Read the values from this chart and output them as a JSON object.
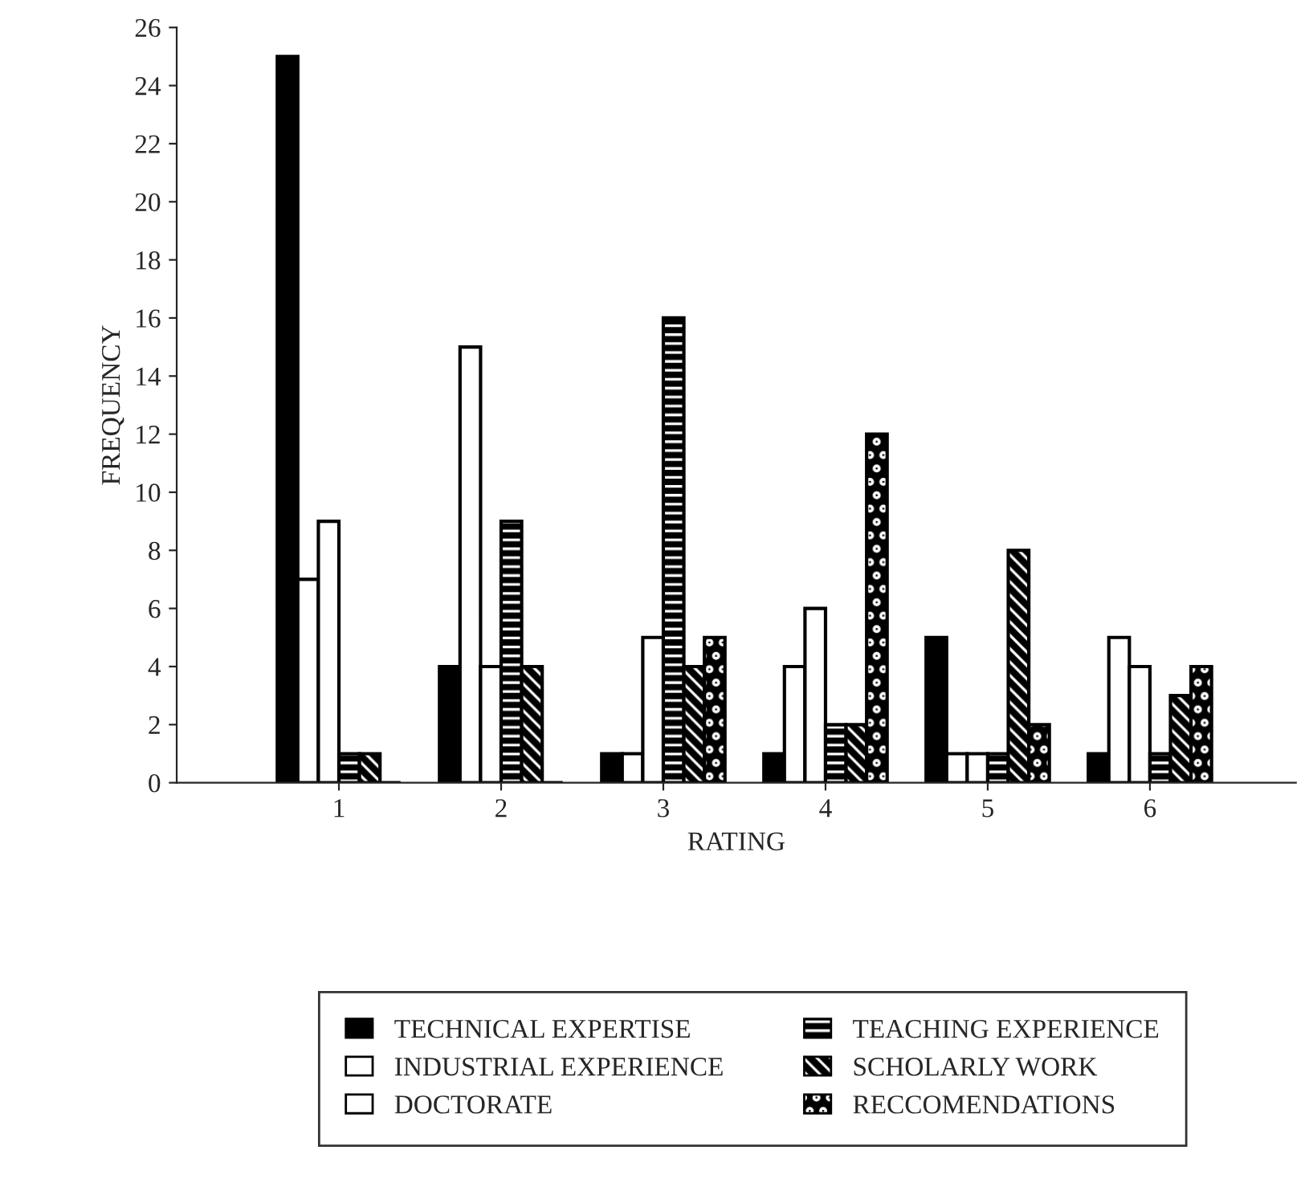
{
  "chart_data": {
    "type": "bar",
    "xlabel": "RATING",
    "ylabel": "FREQUENCY",
    "categories": [
      "1",
      "2",
      "3",
      "4",
      "5",
      "6"
    ],
    "series": [
      {
        "name": "TECHNICAL EXPERTISE",
        "color": "#000000",
        "values": [
          25,
          4,
          1,
          1,
          5,
          1
        ]
      },
      {
        "name": "INDUSTRIAL EXPERIENCE",
        "color": "#ffffff",
        "values": [
          7,
          15,
          1,
          4,
          1,
          5
        ]
      },
      {
        "name": "DOCTORATE",
        "color": "#ffffff",
        "values": [
          9,
          4,
          5,
          6,
          1,
          4
        ]
      },
      {
        "name": "TEACHING EXPERIENCE",
        "color": "#000000",
        "values": [
          1,
          9,
          16,
          2,
          1,
          1
        ]
      },
      {
        "name": "SCHOLARLY WORK",
        "color": "#000000",
        "values": [
          1,
          4,
          4,
          2,
          8,
          3
        ]
      },
      {
        "name": "RECCOMENDATIONS",
        "color": "#000000",
        "values": [
          0,
          0,
          5,
          12,
          2,
          4
        ]
      }
    ],
    "ylim": [
      0,
      26
    ],
    "yticks": [
      0,
      2,
      4,
      6,
      8,
      10,
      12,
      14,
      16,
      18,
      20,
      22,
      24,
      26
    ],
    "grid": false,
    "legend": "bottom"
  }
}
